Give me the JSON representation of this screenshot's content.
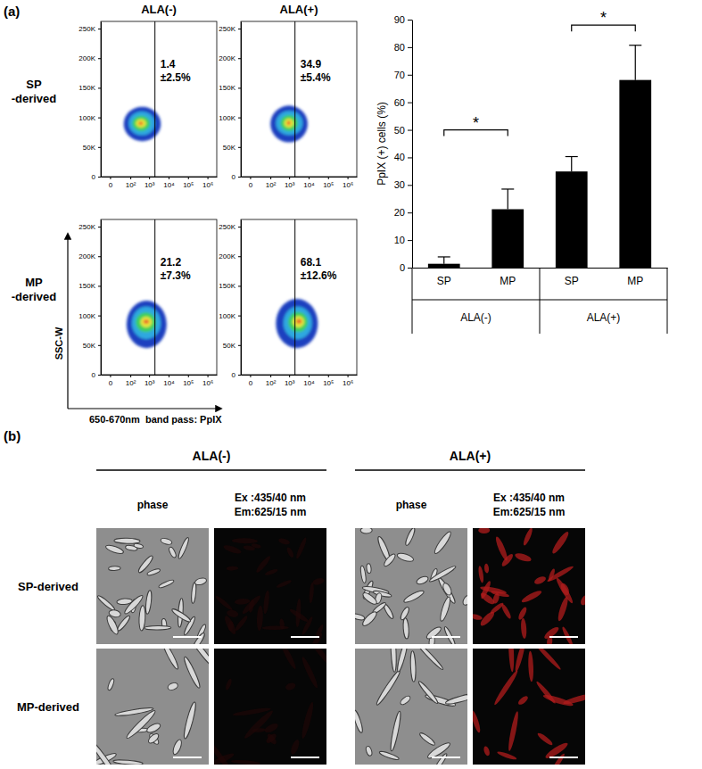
{
  "panel_a": {
    "label": "(a)",
    "columns": [
      "ALA(-)",
      "ALA(+)"
    ],
    "rows": [
      [
        "SP",
        "-derived"
      ],
      [
        "MP",
        "-derived"
      ]
    ],
    "x_label": "650-670nm  band pass: PpIX",
    "y_label": "SSC-W"
  },
  "chart_data": [
    {
      "type": "density",
      "log": "x",
      "xlim": [
        -20,
        3000000
      ],
      "ylim": [
        0,
        262144
      ],
      "xticks": [
        0,
        {
          "value": 100,
          "label": "10²"
        },
        {
          "value": 1000,
          "label": "10³"
        },
        {
          "value": 10000,
          "label": "10⁴"
        },
        {
          "value": 100000,
          "label": "10⁵"
        },
        {
          "value": 1000000,
          "label": "10⁶"
        }
      ],
      "yticks": [
        0,
        {
          "value": 50000,
          "label": "50K"
        },
        {
          "value": 100000,
          "label": "100K"
        },
        {
          "value": 150000,
          "label": "150K"
        },
        {
          "value": 200000,
          "label": "200K"
        },
        {
          "value": 250000,
          "label": "250K"
        }
      ],
      "gate": 2000,
      "annotations": [
        "1.4",
        "±2.5%"
      ],
      "levels": [
        {
          "color": "#1f3fbf",
          "x_range": [
            40,
            4000
          ],
          "y_range": [
            60000,
            118000
          ]
        },
        {
          "color": "#2fa8e0",
          "x_range": [
            80,
            2000
          ],
          "y_range": [
            70000,
            110000
          ]
        },
        {
          "color": "#3ccf5a",
          "x_range": [
            130,
            1100
          ],
          "y_range": [
            77000,
            103000
          ]
        },
        {
          "color": "#e8e83a",
          "x_range": [
            200,
            700
          ],
          "y_range": [
            83000,
            97000
          ]
        },
        {
          "color": "#e8662a",
          "x_range": [
            280,
            480
          ],
          "y_range": [
            87000,
            93000
          ]
        }
      ]
    },
    {
      "type": "density",
      "log": "x",
      "xlim": [
        -20,
        3000000
      ],
      "ylim": [
        0,
        262144
      ],
      "xticks": [
        0,
        {
          "value": 100,
          "label": "10²"
        },
        {
          "value": 1000,
          "label": "10³"
        },
        {
          "value": 10000,
          "label": "10⁴"
        },
        {
          "value": 100000,
          "label": "10⁵"
        },
        {
          "value": 1000000,
          "label": "10⁶"
        }
      ],
      "yticks": [
        0,
        {
          "value": 50000,
          "label": "50K"
        },
        {
          "value": 100000,
          "label": "100K"
        },
        {
          "value": 150000,
          "label": "150K"
        },
        {
          "value": 200000,
          "label": "200K"
        },
        {
          "value": 250000,
          "label": "250K"
        }
      ],
      "gate": 2000,
      "annotations": [
        "34.9",
        "±5.4%"
      ],
      "levels": [
        {
          "color": "#1f3fbf",
          "x_range": [
            100,
            9000
          ],
          "y_range": [
            58000,
            120000
          ]
        },
        {
          "color": "#2fa8e0",
          "x_range": [
            200,
            5000
          ],
          "y_range": [
            70000,
            111000
          ]
        },
        {
          "color": "#3ccf5a",
          "x_range": [
            350,
            2800
          ],
          "y_range": [
            77000,
            104000
          ]
        },
        {
          "color": "#e8e83a",
          "x_range": [
            550,
            1700
          ],
          "y_range": [
            83000,
            98000
          ]
        },
        {
          "color": "#e8662a",
          "x_range": [
            750,
            1200
          ],
          "y_range": [
            87000,
            94000
          ]
        }
      ]
    },
    {
      "type": "density",
      "log": "x",
      "xlim": [
        -20,
        3000000
      ],
      "ylim": [
        0,
        262144
      ],
      "xticks": [
        0,
        {
          "value": 100,
          "label": "10²"
        },
        {
          "value": 1000,
          "label": "10³"
        },
        {
          "value": 10000,
          "label": "10⁴"
        },
        {
          "value": 100000,
          "label": "10⁵"
        },
        {
          "value": 1000000,
          "label": "10⁶"
        }
      ],
      "yticks": [
        0,
        {
          "value": 50000,
          "label": "50K"
        },
        {
          "value": 100000,
          "label": "100K"
        },
        {
          "value": 150000,
          "label": "150K"
        },
        {
          "value": 200000,
          "label": "200K"
        },
        {
          "value": 250000,
          "label": "250K"
        }
      ],
      "gate": 2000,
      "annotations": [
        "21.2",
        "±7.3%"
      ],
      "levels": [
        {
          "color": "#1f3fbf",
          "x_range": [
            60,
            8000
          ],
          "y_range": [
            45000,
            125000
          ]
        },
        {
          "color": "#2fa8e0",
          "x_range": [
            120,
            4000
          ],
          "y_range": [
            60000,
            115000
          ]
        },
        {
          "color": "#3ccf5a",
          "x_range": [
            200,
            2200
          ],
          "y_range": [
            72000,
            105000
          ]
        },
        {
          "color": "#e8e83a",
          "x_range": [
            350,
            1400
          ],
          "y_range": [
            80000,
            98000
          ]
        },
        {
          "color": "#e8662a",
          "x_range": [
            500,
            1000
          ],
          "y_range": [
            86000,
            93000
          ]
        }
      ]
    },
    {
      "type": "density",
      "log": "x",
      "xlim": [
        -20,
        3000000
      ],
      "ylim": [
        0,
        262144
      ],
      "xticks": [
        0,
        {
          "value": 100,
          "label": "10²"
        },
        {
          "value": 1000,
          "label": "10³"
        },
        {
          "value": 10000,
          "label": "10⁴"
        },
        {
          "value": 100000,
          "label": "10⁵"
        },
        {
          "value": 1000000,
          "label": "10⁶"
        }
      ],
      "yticks": [
        0,
        {
          "value": 50000,
          "label": "50K"
        },
        {
          "value": 100000,
          "label": "100K"
        },
        {
          "value": 150000,
          "label": "150K"
        },
        {
          "value": 200000,
          "label": "200K"
        },
        {
          "value": 250000,
          "label": "250K"
        }
      ],
      "gate": 2000,
      "annotations": [
        "68.1",
        "±12.6%"
      ],
      "levels": [
        {
          "color": "#1f3fbf",
          "x_range": [
            200,
            30000
          ],
          "y_range": [
            45000,
            128000
          ]
        },
        {
          "color": "#2fa8e0",
          "x_range": [
            500,
            15000
          ],
          "y_range": [
            60000,
            115000
          ]
        },
        {
          "color": "#3ccf5a",
          "x_range": [
            900,
            9000
          ],
          "y_range": [
            72000,
            106000
          ]
        },
        {
          "color": "#e8e83a",
          "x_range": [
            1500,
            6000
          ],
          "y_range": [
            80000,
            99000
          ]
        },
        {
          "color": "#e8662a",
          "x_range": [
            2300,
            4500
          ],
          "y_range": [
            86000,
            94000
          ]
        }
      ]
    },
    {
      "type": "bar",
      "categories": [
        "SP",
        "MP",
        "SP",
        "MP"
      ],
      "groups": [
        {
          "label": "ALA(-)",
          "from": 0,
          "to": 1
        },
        {
          "label": "ALA(+)",
          "from": 2,
          "to": 3
        }
      ],
      "values": [
        1.4,
        21.2,
        34.9,
        68.1
      ],
      "errors": [
        2.5,
        7.3,
        5.4,
        12.6
      ],
      "color": "#000000",
      "ylim": [
        0,
        90
      ],
      "yticks": [
        0,
        10,
        20,
        30,
        40,
        50,
        60,
        70,
        80,
        90
      ],
      "y_label": "PpIX (+) cells (%)",
      "annotations": [
        {
          "text": "*",
          "from": 0,
          "to": 1,
          "y": 50
        },
        {
          "text": "*",
          "from": 2,
          "to": 3,
          "y": 88
        }
      ]
    }
  ],
  "panel_b": {
    "label": "(b)",
    "groups": [
      "ALA(-)",
      "ALA(+)"
    ],
    "subheaders": [
      [
        "phase"
      ],
      [
        "Ex :435/40 nm",
        "Em:625/15 nm"
      ]
    ],
    "rows": [
      "SP-derived",
      "MP-derived"
    ]
  }
}
